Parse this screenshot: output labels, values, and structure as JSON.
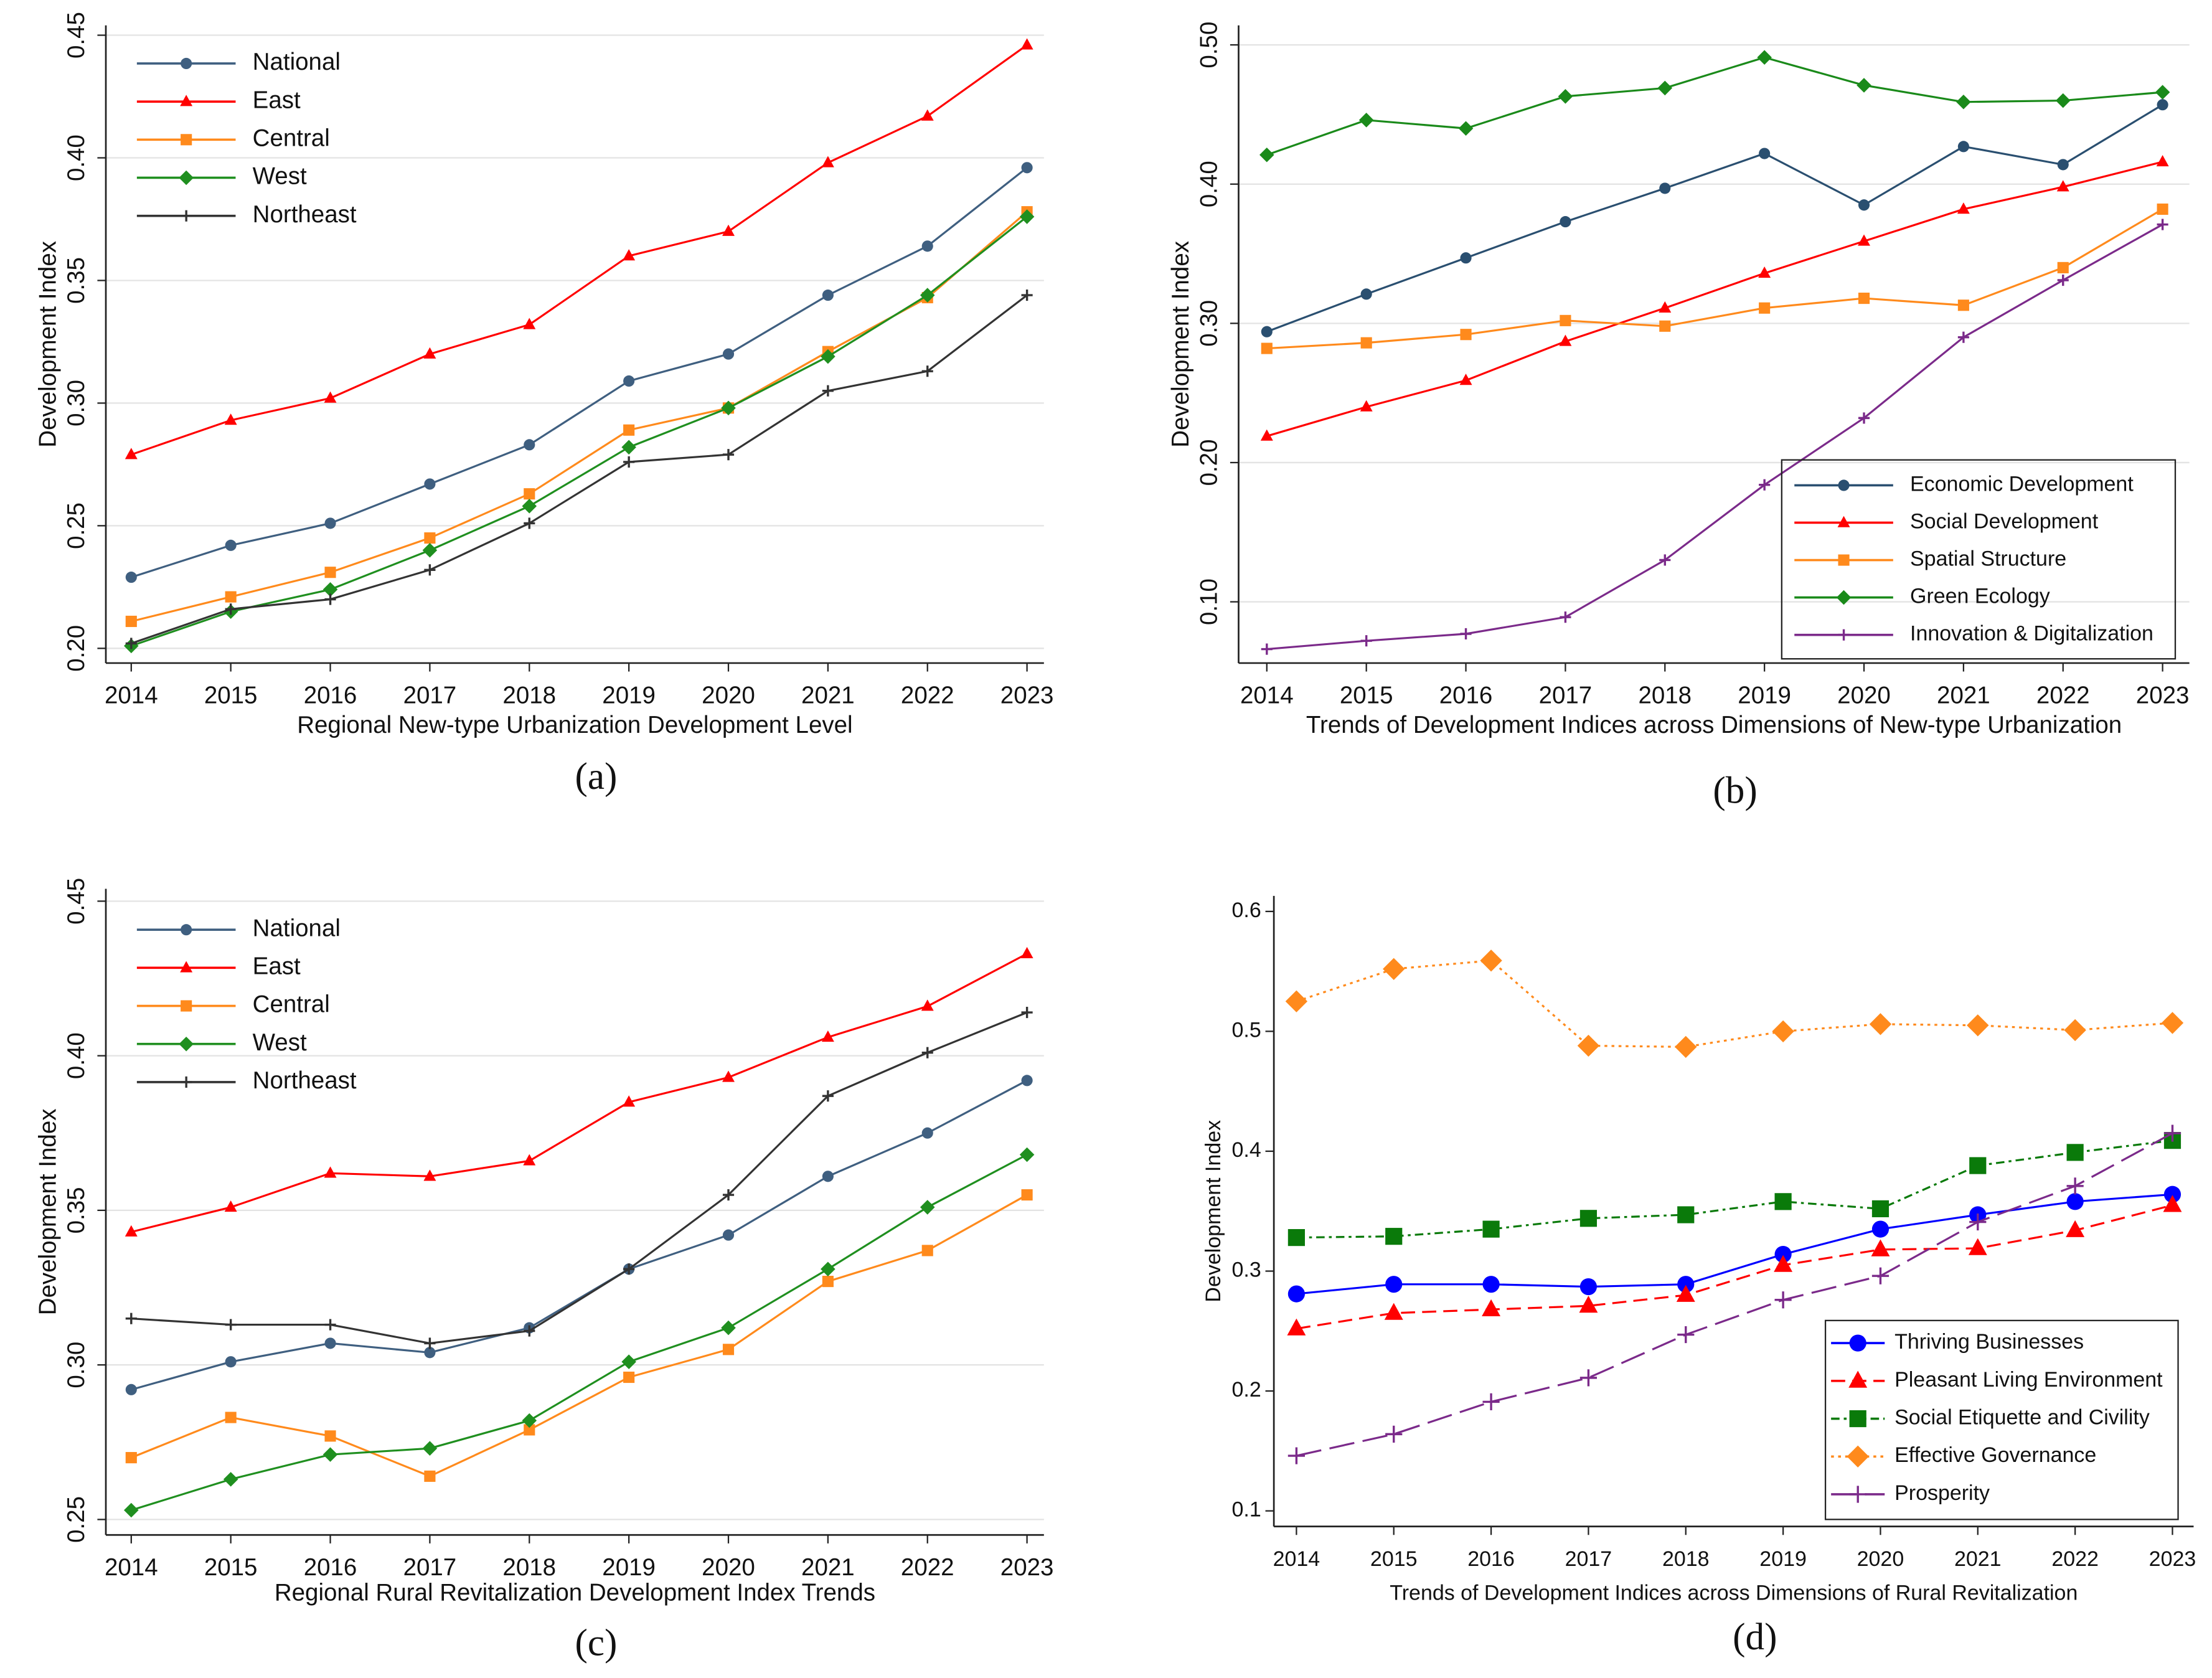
{
  "chart_data": [
    {
      "type": "line",
      "caption": "(a)",
      "x_label": "Regional New-type Urbanization Development Level",
      "y_label": "Development Index",
      "categories": [
        "2014",
        "2015",
        "2016",
        "2017",
        "2018",
        "2019",
        "2020",
        "2021",
        "2022",
        "2023"
      ],
      "ylim": [
        0.194,
        0.454
      ],
      "yticks": [
        {
          "value": 0.2,
          "label": "0.20"
        },
        {
          "value": 0.25,
          "label": "0.25"
        },
        {
          "value": 0.3,
          "label": "0.30"
        },
        {
          "value": 0.35,
          "label": "0.35"
        },
        {
          "value": 0.4,
          "label": "0.40"
        },
        {
          "value": 0.45,
          "label": "0.45"
        }
      ],
      "grid": true,
      "legend": "top-left",
      "legend_frame": false,
      "series": [
        {
          "name": "National",
          "color": "#3f5f80",
          "marker": "circle",
          "dash": "solid",
          "values": [
            0.229,
            0.242,
            0.251,
            0.267,
            0.283,
            0.309,
            0.32,
            0.344,
            0.364,
            0.396
          ]
        },
        {
          "name": "East",
          "color": "#ff0000",
          "marker": "triangle",
          "dash": "solid",
          "values": [
            0.279,
            0.293,
            0.302,
            0.32,
            0.332,
            0.36,
            0.37,
            0.398,
            0.417,
            0.446
          ]
        },
        {
          "name": "Central",
          "color": "#ff8a1c",
          "marker": "square",
          "dash": "solid",
          "values": [
            0.211,
            0.221,
            0.231,
            0.245,
            0.263,
            0.289,
            0.298,
            0.321,
            0.343,
            0.378
          ]
        },
        {
          "name": "West",
          "color": "#1f8f1f",
          "marker": "diamond",
          "dash": "solid",
          "values": [
            0.201,
            0.215,
            0.224,
            0.24,
            0.258,
            0.282,
            0.298,
            0.319,
            0.344,
            0.376
          ]
        },
        {
          "name": "Northeast",
          "color": "#333333",
          "marker": "plus",
          "dash": "solid",
          "values": [
            0.202,
            0.216,
            0.22,
            0.232,
            0.251,
            0.276,
            0.279,
            0.305,
            0.313,
            0.344
          ]
        }
      ]
    },
    {
      "type": "line",
      "caption": "(b)",
      "x_label": "Trends of Development Indices across Dimensions of New-type Urbanization",
      "y_label": "Development Index",
      "categories": [
        "2014",
        "2015",
        "2016",
        "2017",
        "2018",
        "2019",
        "2020",
        "2021",
        "2022",
        "2023"
      ],
      "ylim": [
        0.056,
        0.514
      ],
      "yticks": [
        {
          "value": 0.1,
          "label": "0.10"
        },
        {
          "value": 0.2,
          "label": "0.20"
        },
        {
          "value": 0.3,
          "label": "0.30"
        },
        {
          "value": 0.4,
          "label": "0.40"
        },
        {
          "value": 0.5,
          "label": "0.50"
        }
      ],
      "grid": true,
      "legend": "bottom-right",
      "legend_frame": true,
      "series": [
        {
          "name": "Economic Development",
          "color": "#2a4f70",
          "marker": "circle",
          "dash": "solid",
          "values": [
            0.294,
            0.321,
            0.347,
            0.373,
            0.397,
            0.422,
            0.385,
            0.427,
            0.414,
            0.457
          ]
        },
        {
          "name": "Social Development",
          "color": "#ff0000",
          "marker": "triangle",
          "dash": "solid",
          "values": [
            0.219,
            0.24,
            0.259,
            0.287,
            0.311,
            0.336,
            0.359,
            0.382,
            0.398,
            0.416
          ]
        },
        {
          "name": "Spatial Structure",
          "color": "#ff8a1c",
          "marker": "square",
          "dash": "solid",
          "values": [
            0.282,
            0.286,
            0.292,
            0.302,
            0.298,
            0.311,
            0.318,
            0.313,
            0.34,
            0.382
          ]
        },
        {
          "name": "Green Ecology",
          "color": "#1a8a1a",
          "marker": "diamond",
          "dash": "solid",
          "values": [
            0.421,
            0.446,
            0.44,
            0.463,
            0.469,
            0.491,
            0.471,
            0.459,
            0.46,
            0.466
          ]
        },
        {
          "name": "Innovation & Digitalization",
          "color": "#7b2a8a",
          "marker": "plus",
          "dash": "solid",
          "values": [
            0.066,
            0.072,
            0.077,
            0.089,
            0.13,
            0.184,
            0.232,
            0.29,
            0.331,
            0.371
          ]
        }
      ]
    },
    {
      "type": "line",
      "caption": "(c)",
      "x_label": "Regional Rural Revitalization Development Index Trends",
      "y_label": "Development Index",
      "categories": [
        "2014",
        "2015",
        "2016",
        "2017",
        "2018",
        "2019",
        "2020",
        "2021",
        "2022",
        "2023"
      ],
      "ylim": [
        0.245,
        0.454
      ],
      "yticks": [
        {
          "value": 0.25,
          "label": "0.25"
        },
        {
          "value": 0.3,
          "label": "0.30"
        },
        {
          "value": 0.35,
          "label": "0.35"
        },
        {
          "value": 0.4,
          "label": "0.40"
        },
        {
          "value": 0.45,
          "label": "0.45"
        }
      ],
      "grid": true,
      "legend": "top-left",
      "legend_frame": false,
      "series": [
        {
          "name": "National",
          "color": "#3f5f80",
          "marker": "circle",
          "dash": "solid",
          "values": [
            0.292,
            0.301,
            0.307,
            0.304,
            0.312,
            0.331,
            0.342,
            0.361,
            0.375,
            0.392
          ]
        },
        {
          "name": "East",
          "color": "#ff0000",
          "marker": "triangle",
          "dash": "solid",
          "values": [
            0.343,
            0.351,
            0.362,
            0.361,
            0.366,
            0.385,
            0.393,
            0.406,
            0.416,
            0.433
          ]
        },
        {
          "name": "Central",
          "color": "#ff8a1c",
          "marker": "square",
          "dash": "solid",
          "values": [
            0.27,
            0.283,
            0.277,
            0.264,
            0.279,
            0.296,
            0.305,
            0.327,
            0.337,
            0.355
          ]
        },
        {
          "name": "West",
          "color": "#1f8f1f",
          "marker": "diamond",
          "dash": "solid",
          "values": [
            0.253,
            0.263,
            0.271,
            0.273,
            0.282,
            0.301,
            0.312,
            0.331,
            0.351,
            0.368
          ]
        },
        {
          "name": "Northeast",
          "color": "#333333",
          "marker": "plus",
          "dash": "solid",
          "values": [
            0.315,
            0.313,
            0.313,
            0.307,
            0.311,
            0.331,
            0.355,
            0.387,
            0.401,
            0.414
          ]
        }
      ]
    },
    {
      "type": "line",
      "caption": "(d)",
      "x_label": "Trends of Development Indices across Dimensions of Rural Revitalization",
      "y_label": "Development Index",
      "categories": [
        "2014",
        "2015",
        "2016",
        "2017",
        "2018",
        "2019",
        "2020",
        "2021",
        "2022",
        "2023"
      ],
      "ylim": [
        0.087,
        0.613
      ],
      "yticks": [
        0.1,
        0.2,
        0.3,
        0.4,
        0.5,
        0.6
      ],
      "grid": false,
      "legend": "bottom-right",
      "legend_frame": true,
      "series": [
        {
          "name": "Thriving Businesses",
          "color": "#0000ff",
          "marker": "circle",
          "dash": "solid",
          "values": [
            0.281,
            0.289,
            0.289,
            0.287,
            0.289,
            0.314,
            0.335,
            0.347,
            0.358,
            0.364
          ]
        },
        {
          "name": "Pleasant Living Environment",
          "color": "#ff0000",
          "marker": "triangle",
          "dash": "dashed",
          "values": [
            0.252,
            0.265,
            0.268,
            0.271,
            0.28,
            0.305,
            0.318,
            0.319,
            0.334,
            0.355
          ]
        },
        {
          "name": "Social Etiquette and Civility",
          "color": "#0a7a0a",
          "marker": "square",
          "dash": "dashdot",
          "values": [
            0.328,
            0.329,
            0.335,
            0.344,
            0.347,
            0.358,
            0.352,
            0.388,
            0.399,
            0.409
          ]
        },
        {
          "name": "Effective Governance",
          "color": "#ff8a1c",
          "marker": "diamond",
          "dash": "dotted",
          "values": [
            0.525,
            0.552,
            0.559,
            0.488,
            0.487,
            0.5,
            0.506,
            0.505,
            0.501,
            0.507
          ]
        },
        {
          "name": "Prosperity",
          "color": "#7b2a8a",
          "marker": "plus",
          "dash": "longdash",
          "values": [
            0.146,
            0.164,
            0.191,
            0.211,
            0.247,
            0.276,
            0.296,
            0.341,
            0.371,
            0.415
          ]
        }
      ]
    }
  ]
}
